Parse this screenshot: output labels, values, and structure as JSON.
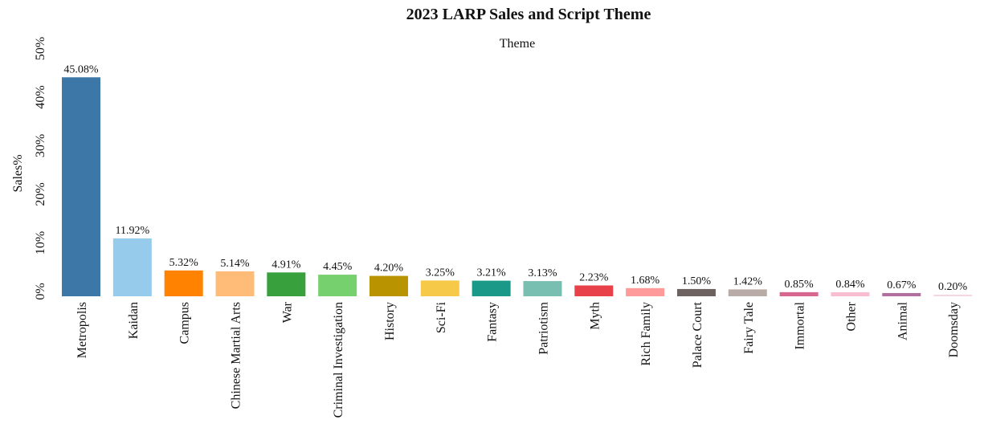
{
  "chart_data": {
    "type": "bar",
    "title": "2023 LARP Sales and Script Theme",
    "subtitle": "Theme",
    "xlabel": "",
    "ylabel": "Sales%",
    "ylim": [
      0,
      50
    ],
    "yticks": [
      "0%",
      "10%",
      "20%",
      "30%",
      "40%",
      "50%"
    ],
    "grid": false,
    "categories": [
      "Metropolis",
      "Kaidan",
      "Campus",
      "Chinese Martial Arts",
      "War",
      "Criminal Investigation",
      "History",
      "Sci-Fi",
      "Fantasy",
      "Patriotism",
      "Myth",
      "Rich Family",
      "Palace Court",
      "Fairy Tale",
      "Immortal",
      "Other",
      "Animal",
      "Doomsday"
    ],
    "values": [
      45.08,
      11.92,
      5.32,
      5.14,
      4.91,
      4.45,
      4.2,
      3.25,
      3.21,
      3.13,
      2.23,
      1.68,
      1.5,
      1.42,
      0.85,
      0.84,
      0.67,
      0.2
    ],
    "value_labels": [
      "45.08%",
      "11.92%",
      "5.32%",
      "5.14%",
      "4.91%",
      "4.45%",
      "4.20%",
      "3.25%",
      "3.21%",
      "3.13%",
      "2.23%",
      "1.68%",
      "1.50%",
      "1.42%",
      "0.85%",
      "0.84%",
      "0.67%",
      "0.20%"
    ],
    "colors": [
      "#3d77a8",
      "#97cbec",
      "#ff8200",
      "#ffbb78",
      "#38a03d",
      "#77d06e",
      "#ba9400",
      "#f7c948",
      "#1a9888",
      "#78bfb1",
      "#e8414a",
      "#ff9a9a",
      "#6e6260",
      "#b9aca6",
      "#d8678f",
      "#f8bdd1",
      "#b06f9e",
      "#f9d5e3"
    ]
  }
}
